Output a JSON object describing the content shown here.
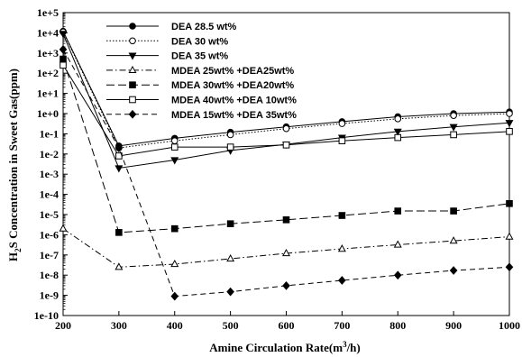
{
  "chart_data": {
    "type": "line",
    "xlabel": "Amine Circulation Rate(m",
    "xlabel_sup": "3",
    "xlabel_tail": "/h)",
    "ylabel": "H",
    "ylabel_sub": "2",
    "ylabel_tail": "S Concentration in Sweet Gas(ppm)",
    "x": [
      200,
      300,
      400,
      500,
      600,
      700,
      800,
      900,
      1000
    ],
    "xlim": [
      200,
      1000
    ],
    "xticks": [
      200,
      300,
      400,
      500,
      600,
      700,
      800,
      900,
      1000
    ],
    "ylim": [
      1e-10,
      100000
    ],
    "yscale": "log",
    "yticks": [
      1e-10,
      1e-09,
      1e-08,
      1e-07,
      1e-06,
      1e-05,
      0.0001,
      0.001,
      0.01,
      0.1,
      1,
      10,
      100,
      1000,
      10000,
      100000
    ],
    "ytick_labels": [
      "1e-10",
      "1e-9",
      "1e-8",
      "1e-7",
      "1e-6",
      "1e-5",
      "1e-4",
      "1e-3",
      "1e-2",
      "1e-1",
      "1e+0",
      "1e+1",
      "1e+2",
      "1e+3",
      "1e+4",
      "1e+5"
    ],
    "grid": false,
    "legend_position": "top-left",
    "series": [
      {
        "name": "DEA 28.5 wt%",
        "marker": "circle-filled",
        "dash": "solid",
        "values": [
          12000,
          0.025,
          0.06,
          0.12,
          0.22,
          0.4,
          0.7,
          1.0,
          1.2
        ]
      },
      {
        "name": "DEA 30 wt%",
        "marker": "circle-open",
        "dash": "dot",
        "values": [
          11000,
          0.02,
          0.045,
          0.09,
          0.18,
          0.32,
          0.55,
          0.8,
          1.0
        ]
      },
      {
        "name": "DEA 35 wt%",
        "marker": "triangle-down-filled",
        "dash": "solid",
        "values": [
          9000,
          0.002,
          0.005,
          0.015,
          0.03,
          0.065,
          0.13,
          0.22,
          0.35
        ]
      },
      {
        "name": "MDEA 25wt% +DEA25wt%",
        "marker": "triangle-up-open",
        "dash": "dashdot",
        "values": [
          2e-06,
          2.5e-08,
          3.5e-08,
          6.5e-08,
          1.2e-07,
          2e-07,
          3.2e-07,
          5e-07,
          8e-07
        ]
      },
      {
        "name": "MDEA 30wt% +DEA20wt%",
        "marker": "square-filled",
        "dash": "longdash",
        "values": [
          500,
          1.3e-06,
          2e-06,
          3.5e-06,
          5.5e-06,
          9e-06,
          1.5e-05,
          1.5e-05,
          3.5e-05
        ]
      },
      {
        "name": "MDEA 40wt% +DEA 10wt%",
        "marker": "square-open",
        "dash": "solid",
        "values": [
          250,
          0.008,
          0.022,
          0.022,
          0.028,
          0.045,
          0.065,
          0.09,
          0.13
        ]
      },
      {
        "name": "MDEA 15wt% +DEA 35wt%",
        "marker": "diamond-filled",
        "dash": "dash",
        "values": [
          1500,
          0.02,
          9e-10,
          1.5e-09,
          3e-09,
          5.5e-09,
          1e-08,
          1.7e-08,
          2.5e-08
        ]
      }
    ]
  }
}
